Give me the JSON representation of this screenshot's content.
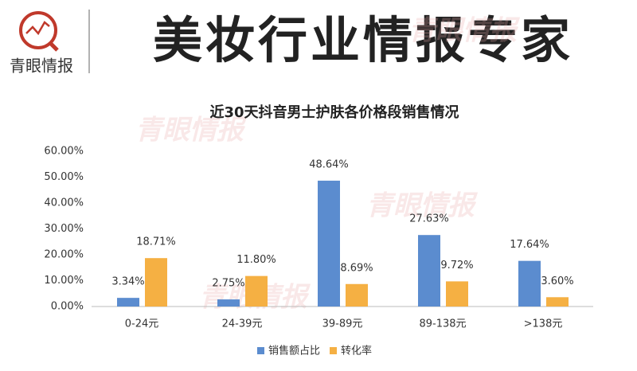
{
  "header": {
    "brand": "青眼情报",
    "slogan": "美妆行业情报专家",
    "watermark": "青眼情报"
  },
  "chart_data": {
    "type": "bar",
    "title": "近30天抖音男士护肤各价格段销售情况",
    "categories": [
      "0-24元",
      "24-39元",
      "39-89元",
      "89-138元",
      ">138元"
    ],
    "series": [
      {
        "name": "销售额占比",
        "color": "#5b8ccf",
        "values": [
          3.34,
          2.75,
          48.64,
          27.63,
          17.64
        ],
        "value_labels": [
          "3.34%",
          "2.75%",
          "48.64%",
          "27.63%",
          "17.64%"
        ]
      },
      {
        "name": "转化率",
        "color": "#f5b043",
        "values": [
          18.71,
          11.8,
          8.69,
          9.72,
          3.6
        ],
        "value_labels": [
          "18.71%",
          "11.80%",
          "8.69%",
          "9.72%",
          "3.60%"
        ]
      }
    ],
    "ylim": [
      0,
      60
    ],
    "yticks": [
      {
        "value": 0,
        "label": "0.00%"
      },
      {
        "value": 10,
        "label": "10.00%"
      },
      {
        "value": 20,
        "label": "20.00%"
      },
      {
        "value": 30,
        "label": "30.00%"
      },
      {
        "value": 40,
        "label": "40.00%"
      },
      {
        "value": 50,
        "label": "50.00%"
      },
      {
        "value": 60,
        "label": "60.00%"
      }
    ],
    "grid": false,
    "legend": "bottom"
  }
}
